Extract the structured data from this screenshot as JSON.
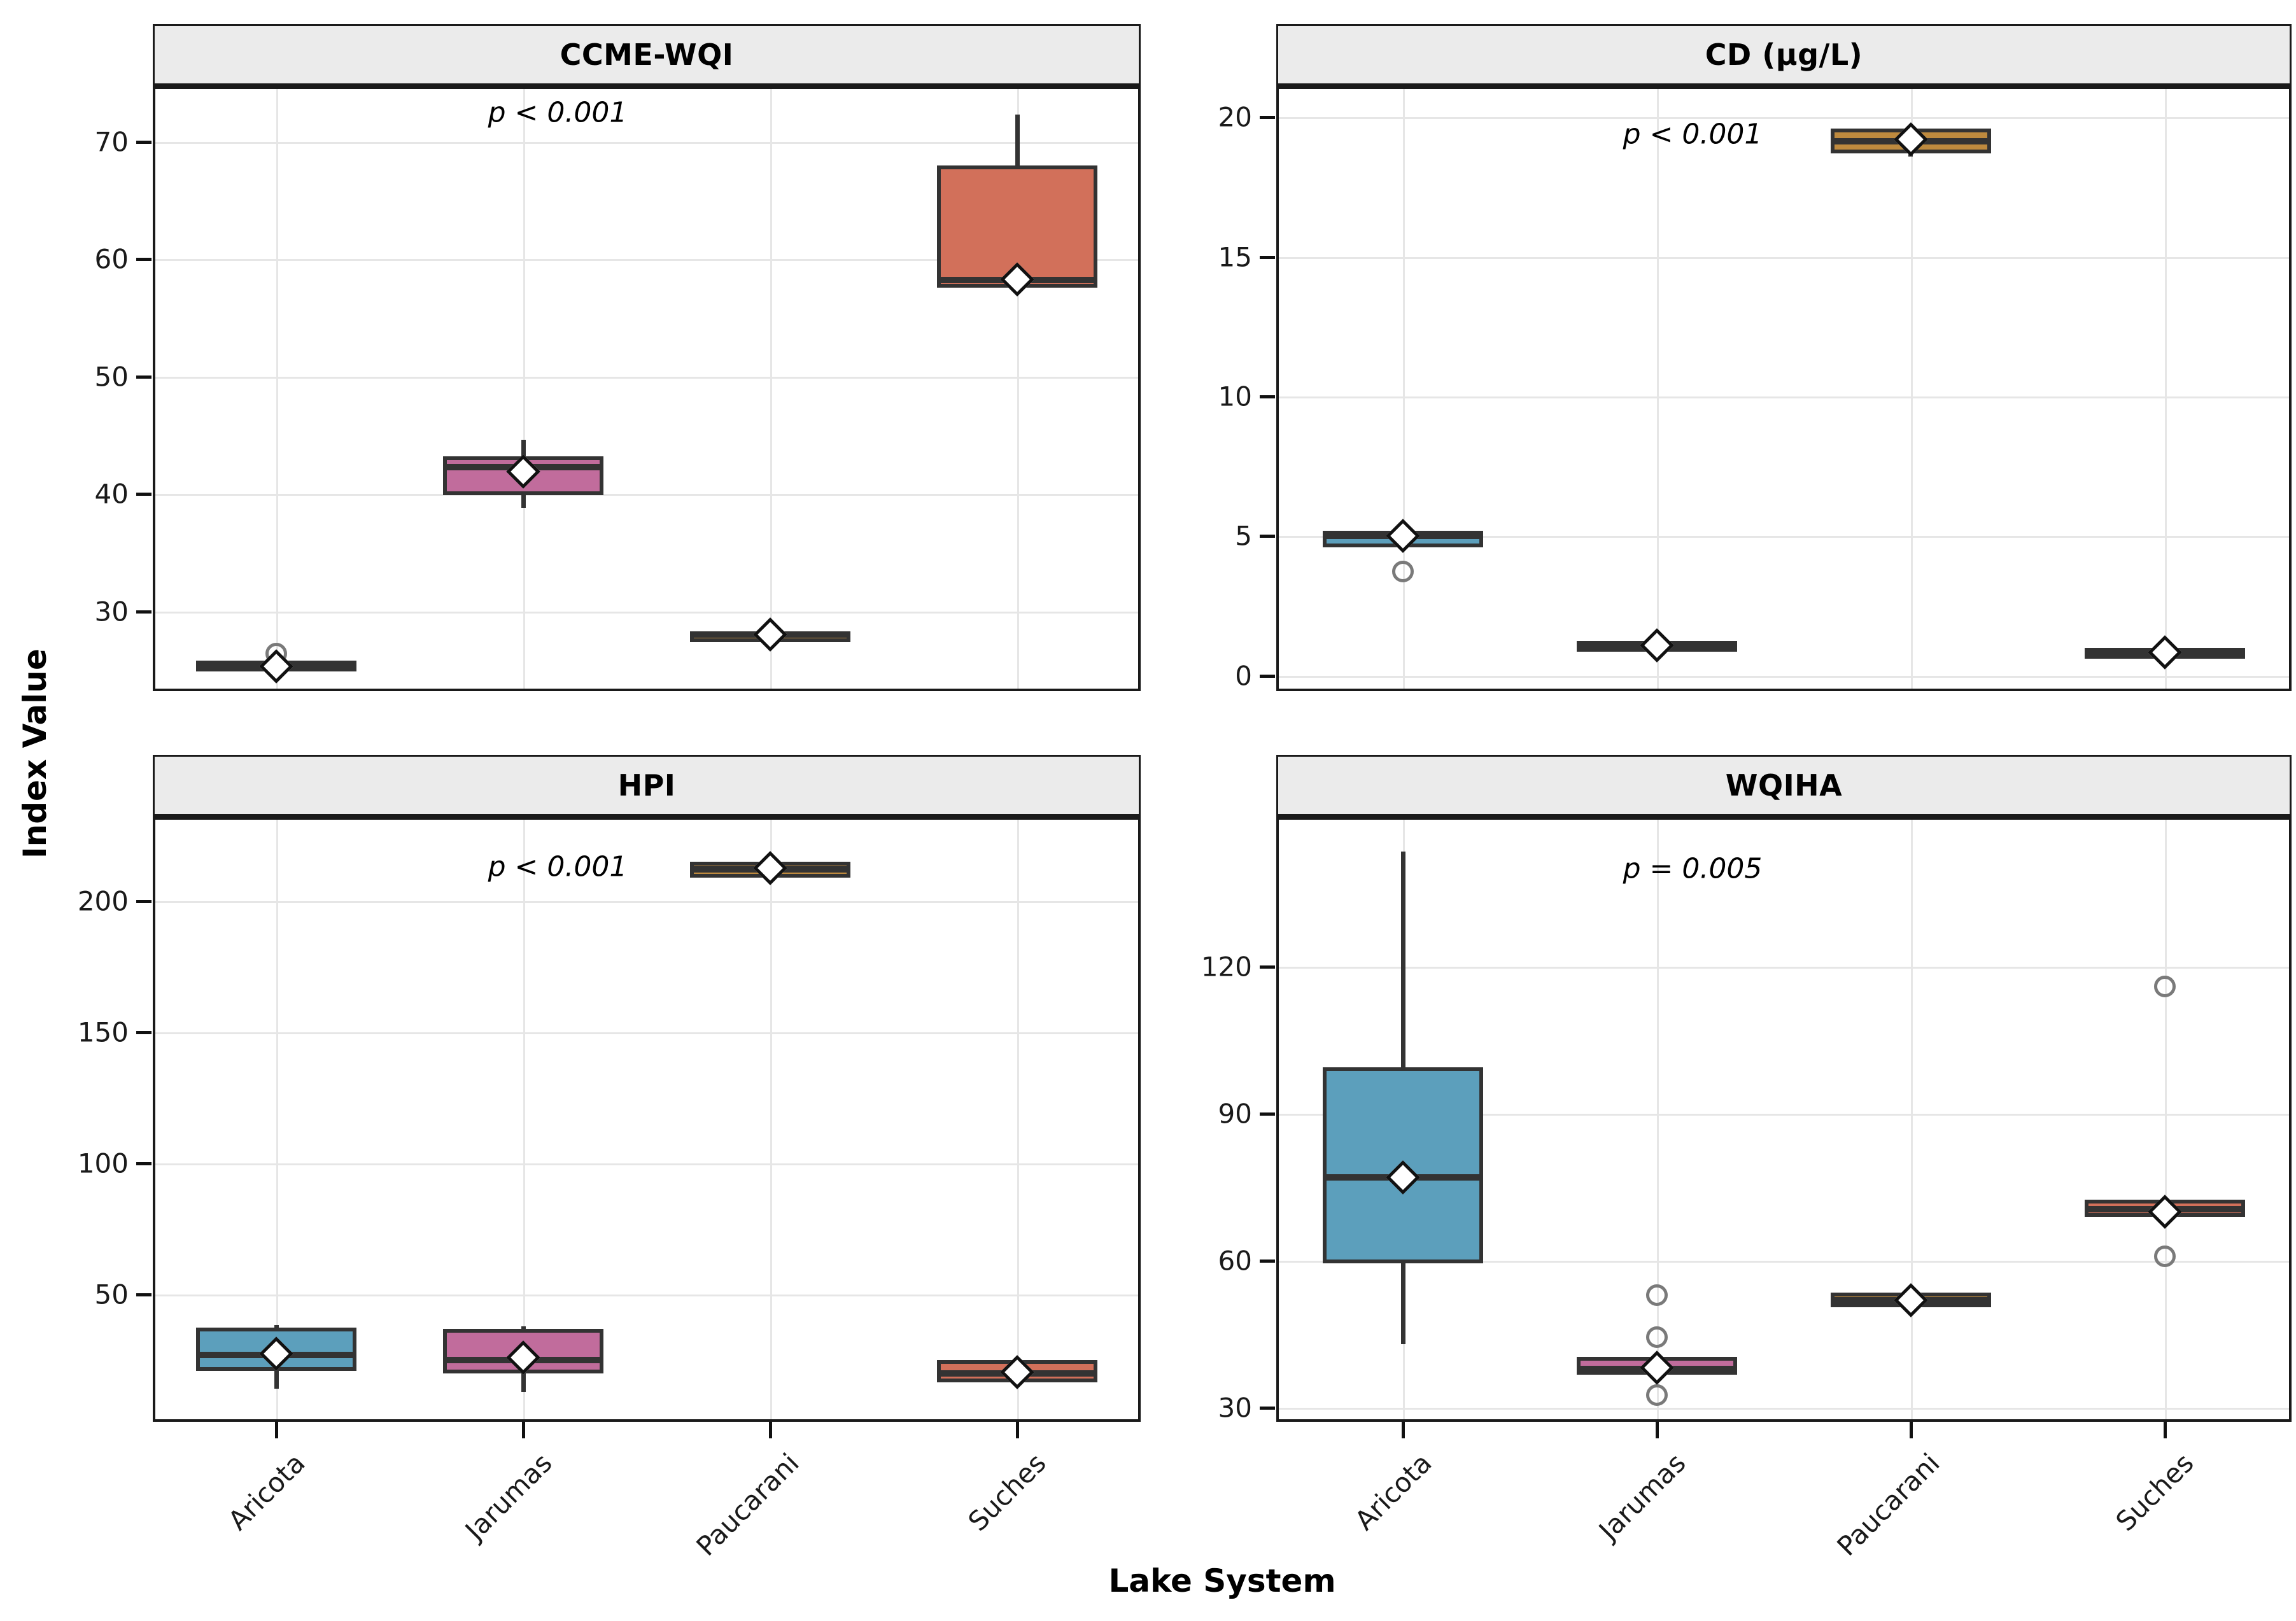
{
  "figure": {
    "y_axis_title": "Index Value",
    "x_axis_title": "Lake System",
    "categories": [
      "Aricota",
      "Jarumas",
      "Paucarani",
      "Suches"
    ],
    "colors": {
      "fill_aricota": "#5C9FBC",
      "fill_jarumas": "#C16C9C",
      "fill_paucarani": "#BE8A3E",
      "fill_suches": "#D2705A",
      "box_line": "#333333",
      "mean_marker_fill": "#FFFFFF",
      "mean_marker_stroke": "#111111",
      "outlier_stroke": "#7A7A7A",
      "gridline": "#E6E6E6",
      "strip_background": "#EBEBEB",
      "panel_background": "#FFFFFF",
      "panel_border": "#1A1A1A"
    }
  },
  "chart_data": [
    {
      "type": "box",
      "title": "CCME-WQI",
      "p_label": "p < 0.001",
      "p_y": 72.5,
      "ylim": [
        23.2,
        74.7
      ],
      "yticks": [
        30,
        40,
        50,
        60,
        70
      ],
      "grid": true,
      "boxes": [
        {
          "lake": "Aricota",
          "fill": "#5C9FBC",
          "min": 25.0,
          "q1": 25.2,
          "median": 25.5,
          "q3": 25.8,
          "max": 26.0,
          "mean": 25.3,
          "outliers": [
            26.4
          ]
        },
        {
          "lake": "Jarumas",
          "fill": "#C16C9C",
          "min": 38.8,
          "q1": 39.9,
          "median": 42.3,
          "q3": 43.2,
          "max": 44.6,
          "mean": 41.9,
          "outliers": []
        },
        {
          "lake": "Paucarani",
          "fill": "#BE8A3E",
          "min": 27.7,
          "q1": 27.8,
          "median": 28.05,
          "q3": 28.3,
          "max": 28.4,
          "mean": 28.05,
          "outliers": []
        },
        {
          "lake": "Suches",
          "fill": "#D2705A",
          "min": 57.4,
          "q1": 57.6,
          "median": 58.2,
          "q3": 68.0,
          "max": 72.3,
          "mean": 58.3,
          "outliers": []
        }
      ]
    },
    {
      "type": "box",
      "title": "CD (µg/L)",
      "p_label": "p < 0.001",
      "p_y": 19.4,
      "ylim": [
        -0.55,
        21.1
      ],
      "yticks": [
        0,
        5,
        10,
        15,
        20
      ],
      "grid": true,
      "boxes": [
        {
          "lake": "Aricota",
          "fill": "#5C9FBC",
          "min": 4.5,
          "q1": 4.6,
          "median": 5.0,
          "q3": 5.2,
          "max": 5.3,
          "mean": 5.0,
          "outliers": [
            3.74
          ]
        },
        {
          "lake": "Jarumas",
          "fill": "#C16C9C",
          "min": 0.9,
          "q1": 0.95,
          "median": 1.1,
          "q3": 1.25,
          "max": 1.3,
          "mean": 1.1,
          "outliers": []
        },
        {
          "lake": "Paucarani",
          "fill": "#BE8A3E",
          "min": 18.6,
          "q1": 18.7,
          "median": 19.15,
          "q3": 19.6,
          "max": 19.7,
          "mean": 19.2,
          "outliers": []
        },
        {
          "lake": "Suches",
          "fill": "#D2705A",
          "min": 0.6,
          "q1": 0.7,
          "median": 0.85,
          "q3": 1.0,
          "max": 1.05,
          "mean": 0.85,
          "outliers": []
        }
      ]
    },
    {
      "type": "box",
      "title": "HPI",
      "p_label": "p < 0.001",
      "p_y": 213,
      "ylim": [
        1.5,
        232
      ],
      "yticks": [
        50,
        100,
        150,
        200
      ],
      "grid": true,
      "boxes": [
        {
          "lake": "Aricota",
          "fill": "#5C9FBC",
          "min": 14.0,
          "q1": 21.0,
          "median": 27.0,
          "q3": 37.5,
          "max": 38.5,
          "mean": 27.5,
          "outliers": []
        },
        {
          "lake": "Jarumas",
          "fill": "#C16C9C",
          "min": 13.0,
          "q1": 20.0,
          "median": 25.0,
          "q3": 37.0,
          "max": 38.0,
          "mean": 26.0,
          "outliers": []
        },
        {
          "lake": "Paucarani",
          "fill": "#BE8A3E",
          "min": 207.5,
          "q1": 209.0,
          "median": 212.0,
          "q3": 215.0,
          "max": 216.0,
          "mean": 212.5,
          "outliers": []
        },
        {
          "lake": "Suches",
          "fill": "#D2705A",
          "min": 15.5,
          "q1": 16.5,
          "median": 20.0,
          "q3": 25.0,
          "max": 26.0,
          "mean": 20.5,
          "outliers": []
        }
      ]
    },
    {
      "type": "box",
      "title": "WQIHA",
      "p_label": "p = 0.005",
      "p_y": 140,
      "ylim": [
        27.2,
        150.5
      ],
      "yticks": [
        30,
        60,
        90,
        120
      ],
      "grid": true,
      "boxes": [
        {
          "lake": "Aricota",
          "fill": "#5C9FBC",
          "min": 43.0,
          "q1": 59.5,
          "median": 77.0,
          "q3": 99.5,
          "max": 143.5,
          "mean": 77.0,
          "outliers": []
        },
        {
          "lake": "Jarumas",
          "fill": "#C16C9C",
          "min": 36.5,
          "q1": 36.8,
          "median": 38.0,
          "q3": 40.4,
          "max": 40.8,
          "mean": 38.2,
          "outliers": [
            53.0,
            44.5,
            32.6
          ]
        },
        {
          "lake": "Paucarani",
          "fill": "#BE8A3E",
          "min": 50.0,
          "q1": 50.5,
          "median": 52.0,
          "q3": 53.5,
          "max": 54.0,
          "mean": 52.0,
          "outliers": []
        },
        {
          "lake": "Suches",
          "fill": "#D2705A",
          "min": 67.5,
          "q1": 69.0,
          "median": 70.5,
          "q3": 72.5,
          "max": 73.0,
          "mean": 70.0,
          "outliers": [
            116.0,
            61.0
          ]
        }
      ]
    }
  ]
}
